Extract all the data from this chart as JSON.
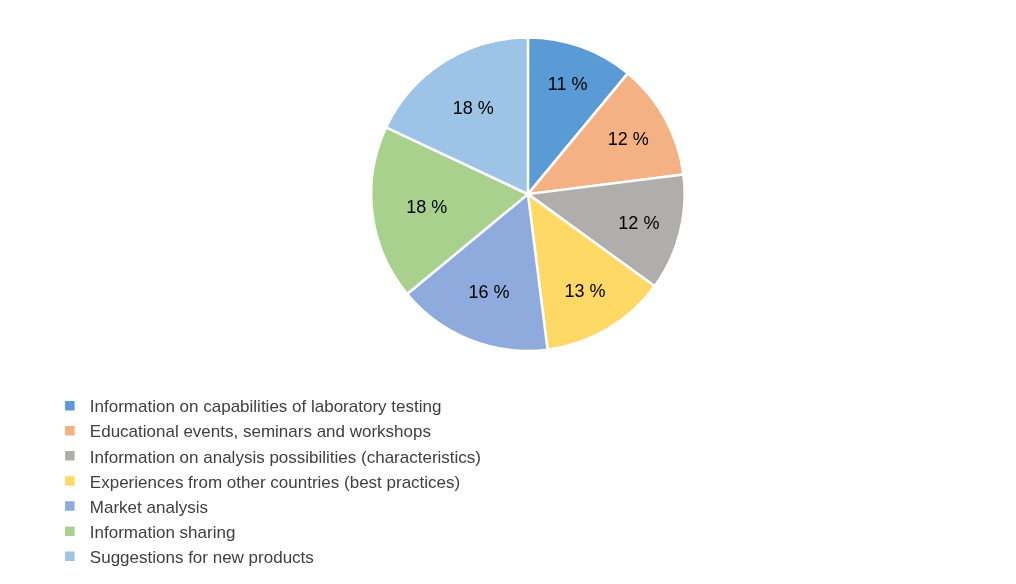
{
  "chart_data": {
    "type": "pie",
    "categories": [
      "Information on capabilities of laboratory testing",
      "Educational events, seminars and workshops",
      "Information on analysis possibilities (characteristics)",
      "Experiences from other countries (best practices)",
      "Market analysis",
      "Information sharing",
      "Suggestions for new products"
    ],
    "values": [
      11,
      12,
      12,
      13,
      16,
      18,
      18
    ],
    "value_labels": [
      "11 %",
      "12 %",
      "12 %",
      "13 %",
      "16 %",
      "18 %",
      "18 %"
    ],
    "colors": [
      "#5b9bd5",
      "#f4b183",
      "#b0aeac",
      "#ffd966",
      "#8faadc",
      "#a9d18e",
      "#9dc3e6"
    ],
    "legend": "bottom"
  }
}
